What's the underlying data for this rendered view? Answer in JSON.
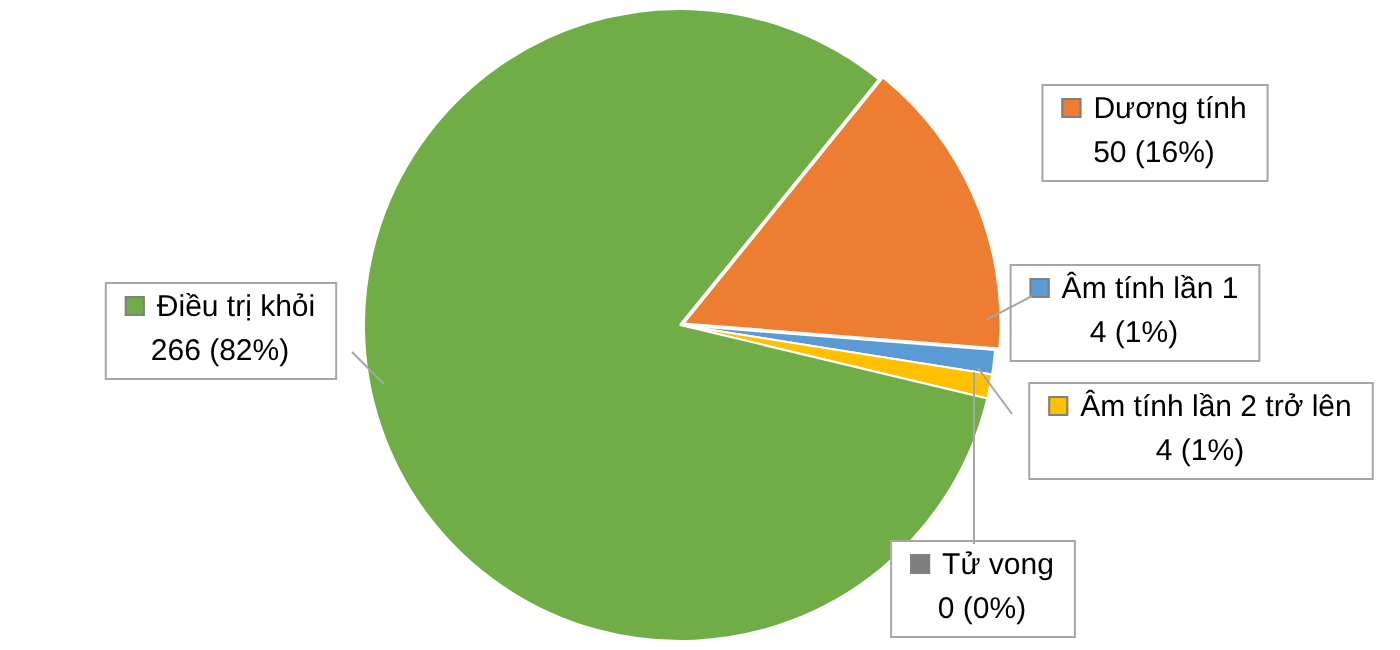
{
  "chart_data": {
    "type": "pie",
    "categories": [
      "Dương tính",
      "Âm tính lần 1",
      "Âm tính lần 2 trở lên",
      "Tử vong",
      "Điều trị khỏi"
    ],
    "values": [
      50,
      4,
      4,
      0,
      266
    ],
    "colors": [
      "#ed7d31",
      "#5b9bd5",
      "#ffc000",
      "#7f7f7f",
      "#70ad47"
    ],
    "value_labels": [
      "50 (16%)",
      "4 (1%)",
      "4 (1%)",
      "0 (0%)",
      "266 (82%)"
    ],
    "legend": "right"
  }
}
